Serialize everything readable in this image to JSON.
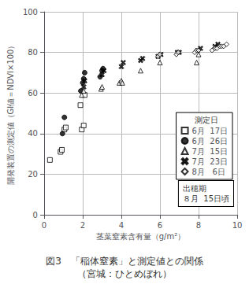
{
  "chart_data": {
    "type": "scatter",
    "title": "図3　「稲体窒素」と測定値との関係",
    "subtitle": "（宮城：ひとめぼれ）",
    "xlabel": "茎葉窒素含有量（g/m²）",
    "ylabel": "開発装置の測定値（GI値＝NDVI×100）",
    "xlim": [
      0,
      10
    ],
    "ylim": [
      0,
      100
    ],
    "xticks": [
      0,
      2,
      4,
      6,
      8,
      10
    ],
    "yticks": [
      0,
      20,
      40,
      60,
      80,
      100
    ],
    "grid": true,
    "grid_color": "#bbbbbb",
    "legend": "right",
    "legend_title": "測定日",
    "annotation": "出穂期\n８月  15日頃",
    "series": [
      {
        "name": "6月  17日",
        "marker": "square-open",
        "color": "#000000",
        "x": [
          0.3,
          0.85,
          0.92,
          1.05,
          1.12,
          1.88,
          1.95,
          2.05,
          2.1
        ],
        "values": [
          27,
          31,
          32,
          42,
          43,
          54,
          42,
          44,
          59
        ]
      },
      {
        "name": "6月  26日",
        "marker": "circle",
        "color": "#000000",
        "x": [
          0.95,
          1.05,
          1.9,
          2.0,
          2.05,
          2.1,
          2.9,
          3.0,
          3.05
        ],
        "values": [
          40,
          48,
          61,
          65,
          67,
          70,
          68,
          71,
          72
        ]
      },
      {
        "name": "7月  15日",
        "marker": "triangle-open",
        "color": "#000000",
        "x": [
          1.95,
          2.05,
          2.95,
          3.0,
          3.9,
          4.0,
          4.05,
          5.0,
          6.0,
          7.9,
          8.0
        ],
        "values": [
          59,
          61,
          62,
          63,
          65,
          66,
          65,
          71,
          75,
          75,
          79
        ]
      },
      {
        "name": "7月  23日",
        "marker": "x",
        "color": "#000000",
        "x": [
          2.05,
          2.1,
          3.0,
          3.1,
          4.0,
          4.1,
          5.0,
          5.1,
          5.9,
          6.05,
          6.9,
          7.0,
          7.95,
          8.1,
          8.85,
          9.0
        ],
        "values": [
          63,
          66,
          69,
          71,
          73,
          75,
          76,
          77,
          78,
          79,
          80,
          80,
          81,
          82,
          83,
          84
        ]
      },
      {
        "name": "8月   6日",
        "marker": "diamond-open",
        "color": "#000000",
        "x": [
          5.9,
          6.0,
          6.85,
          6.95,
          7.8,
          7.9,
          8.0,
          8.7,
          8.85,
          8.95,
          9.1,
          9.2,
          9.3,
          9.45
        ],
        "values": [
          78,
          79,
          79,
          80,
          80,
          81,
          81,
          81,
          82,
          82,
          83,
          83,
          83,
          84
        ]
      }
    ]
  }
}
